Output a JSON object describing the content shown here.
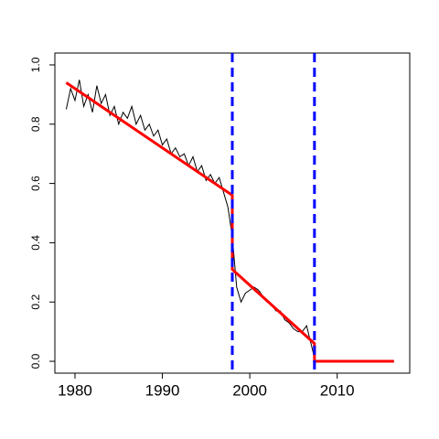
{
  "chart_data": {
    "type": "line",
    "x": [
      1979,
      1979.5,
      1980,
      1980.5,
      1981,
      1981.5,
      1982,
      1982.5,
      1983,
      1983.5,
      1984,
      1984.5,
      1985,
      1985.5,
      1986,
      1986.5,
      1987,
      1987.5,
      1988,
      1988.5,
      1989,
      1989.5,
      1990,
      1990.5,
      1991,
      1991.5,
      1992,
      1992.5,
      1993,
      1993.5,
      1994,
      1994.5,
      1995,
      1995.5,
      1996,
      1996.5,
      1997,
      1997.5,
      1998,
      1998.5,
      1999,
      1999.5,
      2000,
      2000.5,
      2001,
      2001.5,
      2002,
      2002.5,
      2003,
      2003.5,
      2004,
      2004.5,
      2005,
      2005.5,
      2006,
      2006.5,
      2007,
      2007.5,
      2008,
      2008.5,
      2009,
      2009.5,
      2010,
      2010.5,
      2011,
      2011.5,
      2012,
      2012.5,
      2013,
      2013.5,
      2014,
      2014.5,
      2015,
      2015.5,
      2016,
      2016.5
    ],
    "series": [
      {
        "color": "#000000",
        "values": [
          0.85,
          0.92,
          0.88,
          0.95,
          0.86,
          0.9,
          0.84,
          0.93,
          0.87,
          0.9,
          0.83,
          0.86,
          0.8,
          0.84,
          0.82,
          0.86,
          0.8,
          0.83,
          0.78,
          0.8,
          0.76,
          0.78,
          0.73,
          0.75,
          0.7,
          0.72,
          0.69,
          0.7,
          0.66,
          0.69,
          0.64,
          0.66,
          0.61,
          0.63,
          0.6,
          0.62,
          0.57,
          0.52,
          0.42,
          0.25,
          0.2,
          0.23,
          0.24,
          0.25,
          0.24,
          0.22,
          0.2,
          0.19,
          0.17,
          0.17,
          0.14,
          0.13,
          0.11,
          0.1,
          0.1,
          0.12,
          0.06,
          0,
          0,
          0,
          0,
          0,
          0,
          0,
          0,
          0,
          0,
          0,
          0,
          0,
          0,
          0,
          0,
          0,
          0,
          0
        ]
      },
      {
        "color": "#ff0000",
        "x": [
          1979,
          1998,
          1998,
          2007.4,
          2007.4,
          2016.5
        ],
        "values": [
          0.94,
          0.56,
          0.31,
          0.06,
          0,
          0
        ]
      }
    ],
    "vlines": [
      1998,
      2007.4
    ],
    "vline_color": "#0000ff",
    "xlim": [
      1977.7,
      2018.3
    ],
    "ylim": [
      -0.04,
      1.04
    ],
    "xticks": [
      1980,
      1990,
      2000,
      2010
    ],
    "yticks": [
      {
        "value": 0,
        "label": "0.0"
      },
      0.2,
      0.4,
      0.6,
      0.8,
      {
        "value": 1,
        "label": "1.0"
      }
    ]
  }
}
